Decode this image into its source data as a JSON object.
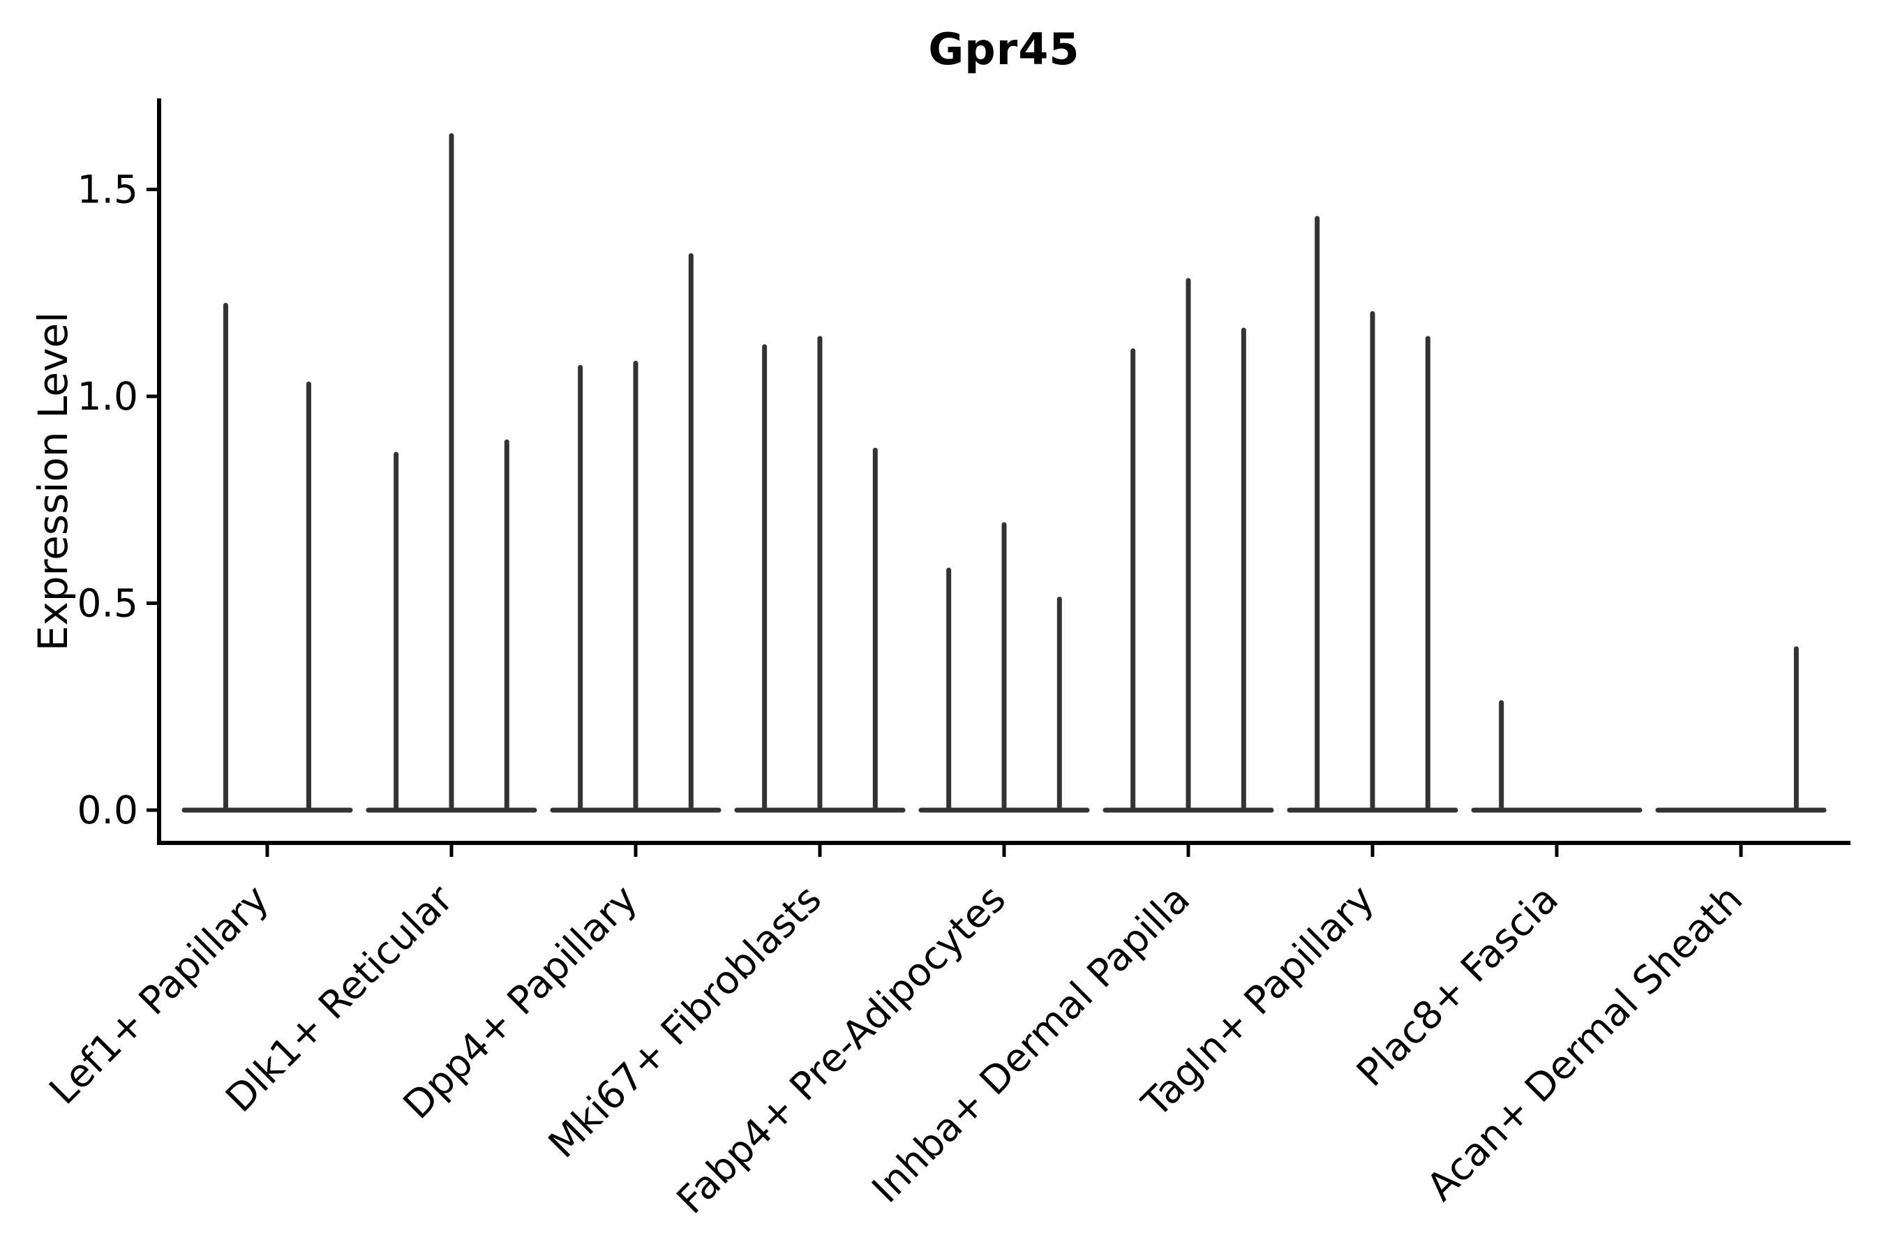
{
  "chart_data": {
    "type": "violin",
    "title": "Gpr45",
    "ylabel": "Expression Level",
    "xlabel": "",
    "yticks": [
      "0.0",
      "0.5",
      "1.0",
      "1.5"
    ],
    "ytick_values": [
      0.0,
      0.5,
      1.0,
      1.5
    ],
    "ylim": [
      -0.08,
      1.72
    ],
    "grid": false,
    "legend": false,
    "violin_color": "#333333",
    "axis_color": "#000000",
    "categories": [
      {
        "label": "Lef1+ Papillary",
        "violins": [
          1.22,
          1.03
        ]
      },
      {
        "label": "Dlk1+ Reticular",
        "violins": [
          0.86,
          1.63,
          0.89
        ]
      },
      {
        "label": "Dpp4+ Papillary",
        "violins": [
          1.07,
          1.08,
          1.34
        ]
      },
      {
        "label": "Mki67+ Fibroblasts",
        "violins": [
          1.12,
          1.14,
          0.87
        ]
      },
      {
        "label": "Fabp4+ Pre-Adipocytes",
        "violins": [
          0.58,
          0.69,
          0.51
        ]
      },
      {
        "label": "Inhba+ Dermal Papilla",
        "violins": [
          1.11,
          1.28,
          1.16
        ]
      },
      {
        "label": "Tagln+ Papillary",
        "violins": [
          1.43,
          1.2,
          1.14
        ]
      },
      {
        "label": "Plac8+ Fascia",
        "violins": [
          0.26,
          0.0,
          0.0
        ]
      },
      {
        "label": "Acan+ Dermal Sheath",
        "violins": [
          0.0,
          0.0,
          0.39
        ]
      }
    ]
  }
}
